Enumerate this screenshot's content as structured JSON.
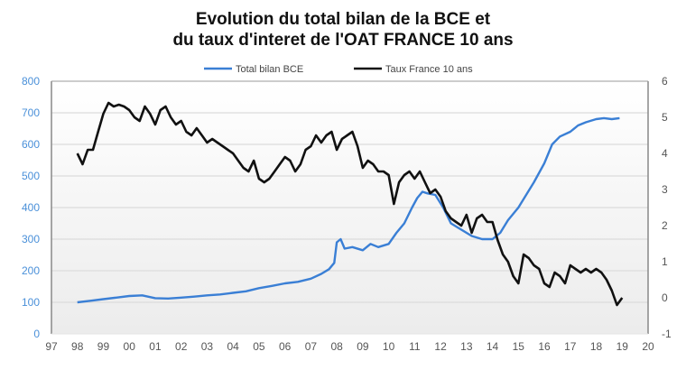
{
  "chart_data": {
    "type": "line",
    "title": "Evolution du total bilan de la BCE et du taux d'interet de l'OAT FRANCE 10 ans",
    "title_lines": [
      "Evolution du total bilan de la BCE et",
      "du taux d'interet de l'OAT FRANCE 10 ans"
    ],
    "xlabel": "",
    "ylabel_left": "",
    "ylabel_right": "",
    "x_ticks": [
      "97",
      "98",
      "99",
      "00",
      "01",
      "02",
      "03",
      "04",
      "05",
      "06",
      "07",
      "08",
      "09",
      "10",
      "11",
      "12",
      "13",
      "14",
      "15",
      "16",
      "17",
      "18",
      "19",
      "20"
    ],
    "xlim": [
      1997,
      2020
    ],
    "ylim_left": [
      0,
      800
    ],
    "y_ticks_left": [
      "0",
      "100",
      "200",
      "300",
      "400",
      "500",
      "600",
      "700",
      "800"
    ],
    "ylim_right": [
      -1,
      6
    ],
    "y_ticks_right": [
      "-1",
      "0",
      "1",
      "2",
      "3",
      "4",
      "5",
      "6"
    ],
    "grid": true,
    "legend_position": "top",
    "series": [
      {
        "name": "Total bilan BCE",
        "axis": "left",
        "color": "#3a7fd5",
        "x": [
          1998.0,
          1998.5,
          1999.0,
          1999.5,
          2000.0,
          2000.5,
          2001.0,
          2001.5,
          2002.0,
          2002.5,
          2003.0,
          2003.5,
          2004.0,
          2004.5,
          2005.0,
          2005.5,
          2006.0,
          2006.5,
          2007.0,
          2007.4,
          2007.7,
          2007.9,
          2008.0,
          2008.15,
          2008.3,
          2008.6,
          2009.0,
          2009.3,
          2009.6,
          2010.0,
          2010.3,
          2010.6,
          2010.9,
          2011.1,
          2011.3,
          2011.5,
          2011.8,
          2012.1,
          2012.4,
          2012.8,
          2013.2,
          2013.6,
          2014.0,
          2014.3,
          2014.6,
          2015.0,
          2015.3,
          2015.6,
          2016.0,
          2016.3,
          2016.6,
          2017.0,
          2017.3,
          2017.6,
          2018.0,
          2018.3,
          2018.6,
          2018.9
        ],
        "values": [
          100,
          105,
          110,
          115,
          120,
          122,
          113,
          112,
          115,
          118,
          122,
          125,
          130,
          135,
          145,
          152,
          160,
          165,
          175,
          190,
          205,
          225,
          290,
          300,
          270,
          275,
          265,
          285,
          275,
          285,
          320,
          350,
          400,
          430,
          450,
          445,
          440,
          400,
          350,
          330,
          310,
          300,
          300,
          320,
          360,
          400,
          440,
          480,
          540,
          600,
          625,
          640,
          660,
          670,
          680,
          683,
          680,
          683
        ]
      },
      {
        "name": "Taux France 10 ans",
        "axis": "right",
        "color": "#111111",
        "x": [
          1998.0,
          1998.2,
          1998.4,
          1998.6,
          1998.8,
          1999.0,
          1999.2,
          1999.4,
          1999.6,
          1999.8,
          2000.0,
          2000.2,
          2000.4,
          2000.6,
          2000.8,
          2001.0,
          2001.2,
          2001.4,
          2001.6,
          2001.8,
          2002.0,
          2002.2,
          2002.4,
          2002.6,
          2002.8,
          2003.0,
          2003.2,
          2003.4,
          2003.6,
          2003.8,
          2004.0,
          2004.2,
          2004.4,
          2004.6,
          2004.8,
          2005.0,
          2005.2,
          2005.4,
          2005.6,
          2005.8,
          2006.0,
          2006.2,
          2006.4,
          2006.6,
          2006.8,
          2007.0,
          2007.2,
          2007.4,
          2007.6,
          2007.8,
          2008.0,
          2008.2,
          2008.4,
          2008.6,
          2008.8,
          2009.0,
          2009.2,
          2009.4,
          2009.6,
          2009.8,
          2010.0,
          2010.2,
          2010.4,
          2010.6,
          2010.8,
          2011.0,
          2011.2,
          2011.4,
          2011.6,
          2011.8,
          2012.0,
          2012.2,
          2012.4,
          2012.6,
          2012.8,
          2013.0,
          2013.2,
          2013.4,
          2013.6,
          2013.8,
          2014.0,
          2014.2,
          2014.4,
          2014.6,
          2014.8,
          2015.0,
          2015.2,
          2015.4,
          2015.6,
          2015.8,
          2016.0,
          2016.2,
          2016.4,
          2016.6,
          2016.8,
          2017.0,
          2017.2,
          2017.4,
          2017.6,
          2017.8,
          2018.0,
          2018.2,
          2018.4,
          2018.6,
          2018.8,
          2019.0
        ],
        "values": [
          4.0,
          3.7,
          4.1,
          4.1,
          4.6,
          5.1,
          5.4,
          5.3,
          5.35,
          5.3,
          5.2,
          5.0,
          4.9,
          5.3,
          5.1,
          4.8,
          5.2,
          5.3,
          5.0,
          4.8,
          4.9,
          4.6,
          4.5,
          4.7,
          4.5,
          4.3,
          4.4,
          4.3,
          4.2,
          4.1,
          4.0,
          3.8,
          3.6,
          3.5,
          3.8,
          3.3,
          3.2,
          3.3,
          3.5,
          3.7,
          3.9,
          3.8,
          3.5,
          3.7,
          4.1,
          4.2,
          4.5,
          4.3,
          4.5,
          4.6,
          4.1,
          4.4,
          4.5,
          4.6,
          4.2,
          3.6,
          3.8,
          3.7,
          3.5,
          3.5,
          3.4,
          2.6,
          3.2,
          3.4,
          3.5,
          3.3,
          3.5,
          3.2,
          2.9,
          3.0,
          2.8,
          2.4,
          2.2,
          2.1,
          2.0,
          2.3,
          1.8,
          2.2,
          2.3,
          2.1,
          2.1,
          1.6,
          1.2,
          1.0,
          0.6,
          0.4,
          1.2,
          1.1,
          0.9,
          0.8,
          0.4,
          0.3,
          0.7,
          0.6,
          0.4,
          0.9,
          0.8,
          0.7,
          0.8,
          0.7,
          0.8,
          0.7,
          0.5,
          0.2,
          -0.2,
          0.0
        ]
      }
    ]
  },
  "legend": {
    "items": [
      {
        "label": "Total bilan BCE",
        "color": "#3a7fd5"
      },
      {
        "label": "Taux France 10 ans",
        "color": "#111111"
      }
    ]
  }
}
